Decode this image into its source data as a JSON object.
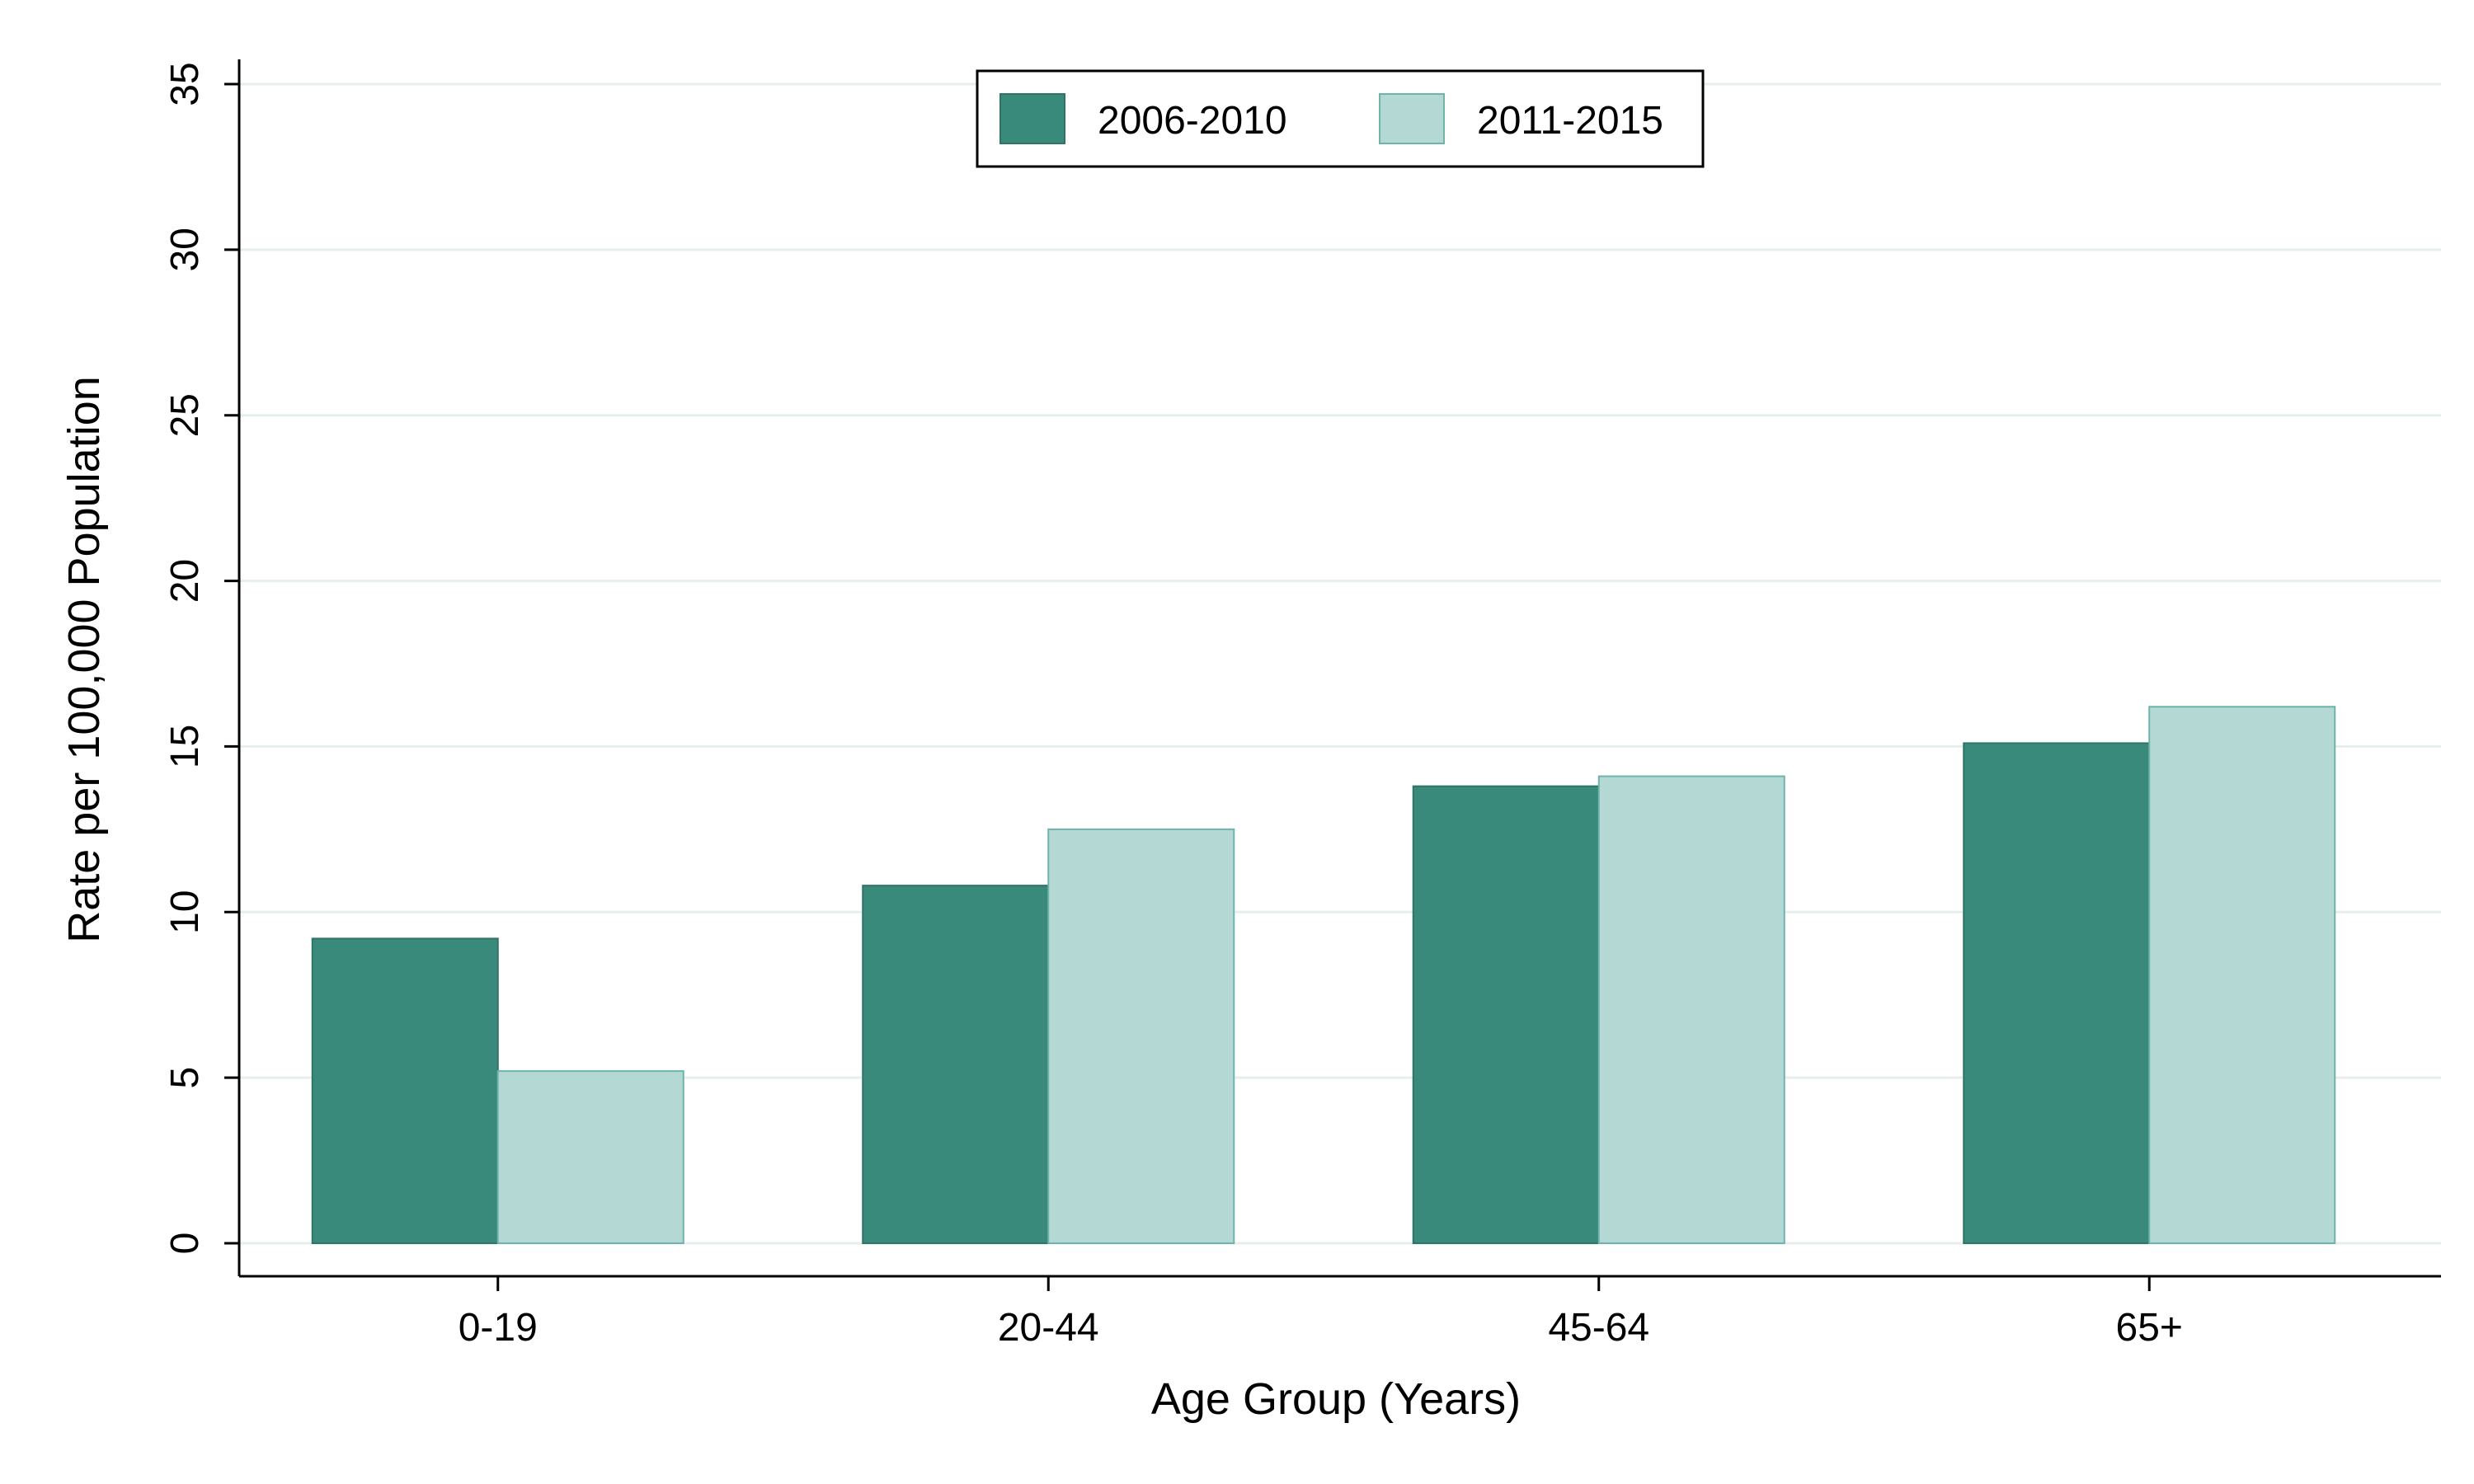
{
  "chart_data": {
    "type": "bar",
    "title": "",
    "xlabel": "Age Group (Years)",
    "ylabel": "Rate per 100,000 Population",
    "categories": [
      "0-19",
      "20-44",
      "45-64",
      "65+"
    ],
    "series": [
      {
        "name": "2006-2010",
        "color": "#3a8a7b",
        "values": [
          9.2,
          10.8,
          13.8,
          15.1
        ]
      },
      {
        "name": "2011-2015",
        "color": "#b4d9d5",
        "values": [
          5.2,
          12.5,
          14.1,
          16.2
        ]
      }
    ],
    "ylim": [
      0,
      35
    ],
    "yticks": [
      0,
      5,
      10,
      15,
      20,
      25,
      30,
      35
    ],
    "y_tick_labels": [
      "0",
      "5",
      "10",
      "15",
      "20",
      "25",
      "30",
      "35"
    ],
    "grid": true,
    "legend_position": "top-center"
  }
}
